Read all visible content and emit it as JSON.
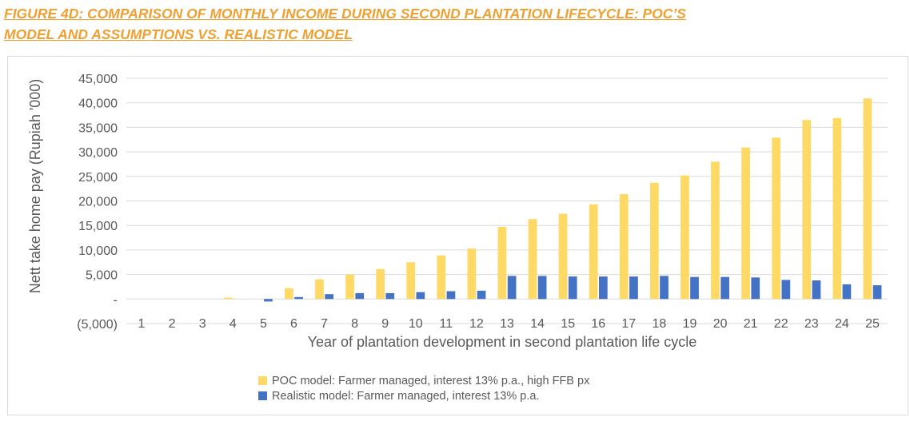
{
  "figure_title": {
    "line1": "FIGURE 4D: COMPARISON OF MONTHLY INCOME DURING SECOND PLANTATION LIFECYCLE: POC’S",
    "line2": "MODEL AND ASSUMPTIONS VS. REALISTIC MODEL"
  },
  "colors": {
    "title": "#f0a030",
    "poc": "#ffd966",
    "realistic": "#4472c4",
    "grid": "#d9d9d9",
    "text": "#595959"
  },
  "chart_data": {
    "type": "bar",
    "title": "",
    "xlabel": "Year of plantation development in second plantation life cycle",
    "ylabel": "Nett take home pay (Rupiah '000)",
    "ylim": [
      -5000,
      45000
    ],
    "yticks": [
      -5000,
      0,
      5000,
      10000,
      15000,
      20000,
      25000,
      30000,
      35000,
      40000,
      45000
    ],
    "ytick_labels": [
      "(5,000)",
      "-",
      "5,000",
      "10,000",
      "15,000",
      "20,000",
      "25,000",
      "30,000",
      "35,000",
      "40,000",
      "45,000"
    ],
    "grid": true,
    "legend_position": "bottom",
    "categories": [
      "1",
      "2",
      "3",
      "4",
      "5",
      "6",
      "7",
      "8",
      "9",
      "10",
      "11",
      "12",
      "13",
      "14",
      "15",
      "16",
      "17",
      "18",
      "19",
      "20",
      "21",
      "22",
      "23",
      "24",
      "25"
    ],
    "series": [
      {
        "name": "POC model: Farmer managed, interest 13% p.a., high FFB px",
        "color": "#ffd966",
        "values": [
          0,
          0,
          0,
          300,
          0,
          2200,
          4000,
          5000,
          6100,
          7500,
          8900,
          10300,
          14700,
          16300,
          17400,
          19300,
          21400,
          23700,
          25200,
          28000,
          30900,
          32900,
          36500,
          36900,
          40900
        ]
      },
      {
        "name": "Realistic model: Farmer managed, interest 13% p.a.",
        "color": "#4472c4",
        "values": [
          0,
          0,
          0,
          0,
          -500,
          400,
          1000,
          1200,
          1200,
          1400,
          1600,
          1700,
          4700,
          4700,
          4600,
          4600,
          4600,
          4700,
          4500,
          4500,
          4400,
          3900,
          3800,
          3000,
          2800
        ]
      }
    ]
  }
}
